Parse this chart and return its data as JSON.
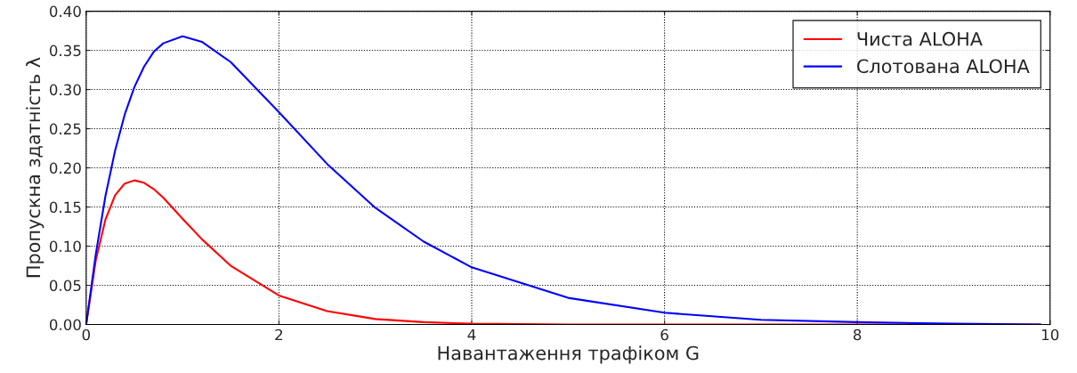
{
  "chart_data": {
    "type": "line",
    "xlabel": "Навантаження трафіком G",
    "ylabel": "Пропускна здатність λ",
    "x": [
      0,
      0.1,
      0.2,
      0.3,
      0.4,
      0.5,
      0.6,
      0.7,
      0.8,
      1.0,
      1.2,
      1.5,
      2,
      2.5,
      3,
      3.5,
      4,
      5,
      6,
      7,
      8,
      9,
      9.9
    ],
    "series": [
      {
        "name": "Чиста ALOHA",
        "color": "#ff0000",
        "values": [
          0,
          0.082,
          0.134,
          0.165,
          0.18,
          0.184,
          0.181,
          0.173,
          0.162,
          0.135,
          0.109,
          0.075,
          0.037,
          0.017,
          0.007,
          0.003,
          0.001,
          0,
          0,
          0,
          0,
          0,
          0
        ]
      },
      {
        "name": "Слотована ALOHA",
        "color": "#0000ff",
        "values": [
          0,
          0.09,
          0.164,
          0.222,
          0.268,
          0.303,
          0.329,
          0.348,
          0.359,
          0.368,
          0.361,
          0.335,
          0.271,
          0.205,
          0.149,
          0.106,
          0.073,
          0.034,
          0.015,
          0.006,
          0.003,
          0.001,
          0
        ]
      }
    ],
    "xlim": [
      0,
      10
    ],
    "xticks": [
      0,
      2,
      4,
      6,
      8,
      10
    ],
    "ylim": [
      0,
      0.4
    ],
    "yticks": [
      {
        "value": 0,
        "label": "0.00"
      },
      {
        "value": 0.05,
        "label": "0.05"
      },
      {
        "value": 0.1,
        "label": "0.10"
      },
      {
        "value": 0.15,
        "label": "0.15"
      },
      {
        "value": 0.2,
        "label": "0.20"
      },
      {
        "value": 0.25,
        "label": "0.25"
      },
      {
        "value": 0.3,
        "label": "0.30"
      },
      {
        "value": 0.35,
        "label": "0.35"
      },
      {
        "value": 0.4,
        "label": "0.40"
      }
    ],
    "grid": true,
    "legend": "top right"
  }
}
